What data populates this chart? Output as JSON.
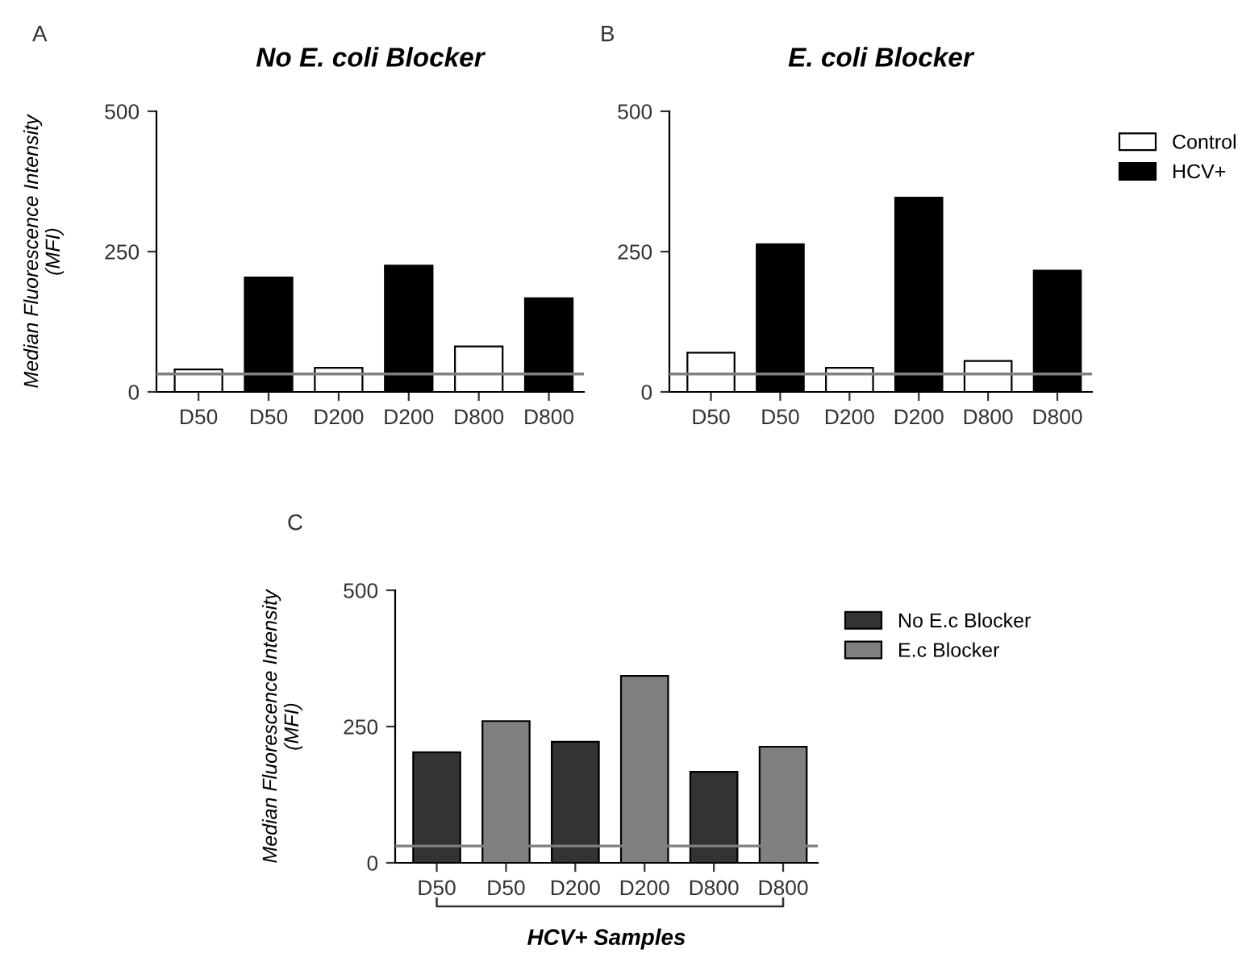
{
  "chart_data": [
    {
      "type": "bar",
      "title": "No E. coli Blocker",
      "ylabel": "Median Fluorescence Intensity\n(MFI)",
      "categories": [
        "D50",
        "D50",
        "D200",
        "D200",
        "D800",
        "D800"
      ],
      "series": [
        {
          "color": "#ffffff",
          "values": [
            40,
            null,
            43,
            null,
            81,
            null
          ]
        },
        {
          "color": "#000000",
          "values": [
            null,
            204,
            null,
            225,
            null,
            167
          ]
        }
      ],
      "ylim": [
        0,
        500
      ],
      "yticks": [
        0,
        250,
        500
      ],
      "ref_lines": [
        {
          "axis": "y",
          "value": 32,
          "color": "#808080"
        }
      ],
      "grid": false,
      "legend": false,
      "annotations": [
        "A"
      ]
    },
    {
      "type": "bar",
      "title": "E. coli Blocker",
      "categories": [
        "D50",
        "D50",
        "D200",
        "D200",
        "D800",
        "D800"
      ],
      "series": [
        {
          "name": "Control",
          "color": "#ffffff",
          "values": [
            70,
            null,
            43,
            null,
            55,
            null
          ]
        },
        {
          "name": "HCV+",
          "color": "#000000",
          "values": [
            null,
            263,
            null,
            346,
            null,
            216
          ]
        }
      ],
      "ylim": [
        0,
        500
      ],
      "yticks": [
        0,
        250,
        500
      ],
      "ref_lines": [
        {
          "axis": "y",
          "value": 32,
          "color": "#808080"
        }
      ],
      "grid": false,
      "legend": "top right",
      "annotations": [
        "B"
      ]
    },
    {
      "type": "bar",
      "ylabel": "Median Fluorescence Intensity\n(MFI)",
      "xlabel": "HCV+ Samples",
      "categories": [
        "D50",
        "D50",
        "D200",
        "D200",
        "D800",
        "D800"
      ],
      "series": [
        {
          "name": "No E.c Blocker",
          "color": "#333333",
          "values": [
            203,
            null,
            222,
            null,
            167,
            null
          ]
        },
        {
          "name": "E.c Blocker",
          "color": "#808080",
          "values": [
            null,
            260,
            null,
            343,
            null,
            213
          ]
        }
      ],
      "ylim": [
        0,
        500
      ],
      "yticks": [
        0,
        250,
        500
      ],
      "ref_lines": [
        {
          "axis": "y",
          "value": 31,
          "color": "#808080"
        }
      ],
      "grid": false,
      "legend": "top right",
      "annotations": [
        "C"
      ]
    }
  ]
}
